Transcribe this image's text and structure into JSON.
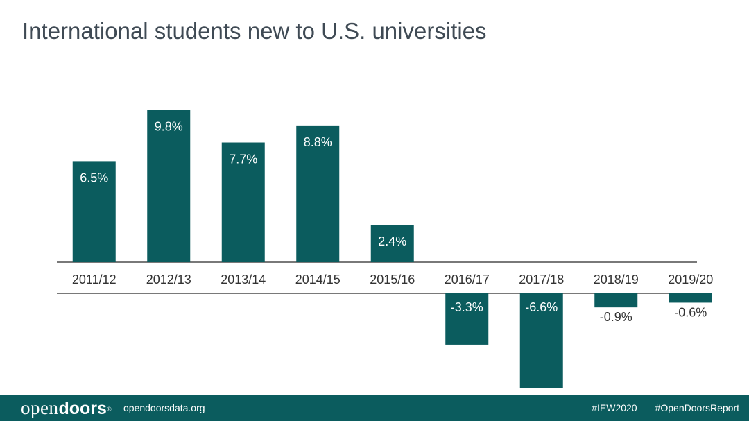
{
  "title": "International students new to U.S. universities",
  "chart_data": {
    "type": "bar",
    "categories": [
      "2011/12",
      "2012/13",
      "2013/14",
      "2014/15",
      "2015/16",
      "2016/17",
      "2017/18",
      "2018/19",
      "2019/20"
    ],
    "values": [
      6.5,
      9.8,
      7.7,
      8.8,
      2.4,
      -3.3,
      -6.6,
      -0.9,
      -0.6
    ],
    "data_labels": [
      "6.5%",
      "9.8%",
      "7.7%",
      "8.8%",
      "2.4%",
      "-3.3%",
      "-6.6%",
      "-0.9%",
      "-0.6%"
    ],
    "title": "International students new to U.S. universities",
    "xlabel": "",
    "ylabel": "",
    "grid": false,
    "legend": "none",
    "bar_color": "#0b5c5e"
  },
  "footer": {
    "logo_open": "open",
    "logo_doors": "doors",
    "logo_mark": "®",
    "website": "opendoorsdata.org",
    "tag_1": "#IEW2020",
    "tag_2": "#OpenDoorsReport",
    "background": "#0b5c5e"
  }
}
